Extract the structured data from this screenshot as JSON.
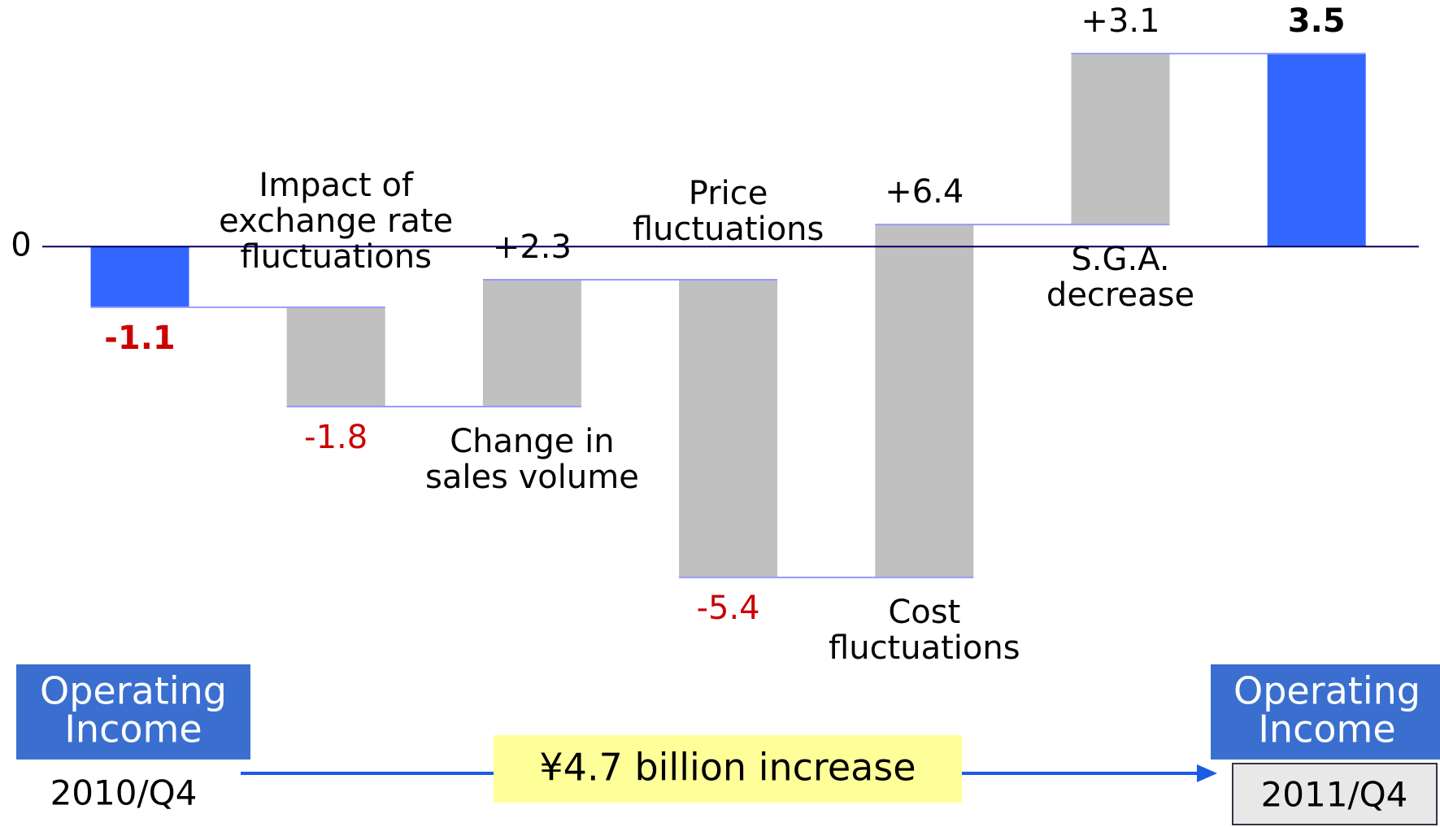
{
  "chart_data": {
    "type": "waterfall",
    "categories": [
      null,
      [
        "Impact of",
        "exchange rate",
        "fluctuations"
      ],
      [
        "Change in",
        "sales volume"
      ],
      [
        "Price",
        "fluctuations"
      ],
      [
        "Cost",
        "fluctuations"
      ],
      [
        "S.G.A.",
        "decrease"
      ],
      null
    ],
    "values": [
      -1.1,
      -1.8,
      2.3,
      -5.4,
      6.4,
      3.1,
      3.5
    ],
    "value_labels": [
      "-1.1",
      "-1.8",
      "+2.3",
      "-5.4",
      "+6.4",
      "+3.1",
      "3.5"
    ],
    "bar_colors": [
      "#3366ff",
      "#c0c0c0",
      "#c0c0c0",
      "#c0c0c0",
      "#c0c0c0",
      "#c0c0c0",
      "#3366ff"
    ],
    "negative_label_color": "#cc0000",
    "connector_color": "#9999ff",
    "ylim": [
      -7,
      4
    ],
    "yticks": [
      0
    ]
  },
  "footer": {
    "start": {
      "label": [
        "Operating",
        "Income"
      ],
      "period": "2010/Q4"
    },
    "end": {
      "label": [
        "Operating",
        "Income"
      ],
      "period": "2011/Q4"
    },
    "change": "¥4.7 billion increase"
  }
}
